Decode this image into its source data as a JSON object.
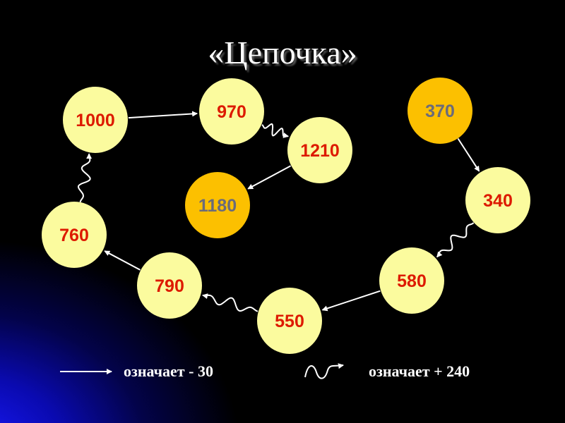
{
  "title": "«Цепочка»",
  "colors": {
    "node_fill": "#fbfb9e",
    "node_highlight": "#fcc000",
    "text_red": "#dd1a00",
    "text_gray": "#6b6b7a",
    "arrow": "#ffffff"
  },
  "nodes": [
    {
      "id": "n1000",
      "label": "1000",
      "highlight": false
    },
    {
      "id": "n970",
      "label": "970",
      "highlight": false
    },
    {
      "id": "n1210",
      "label": "1210",
      "highlight": false
    },
    {
      "id": "n1180",
      "label": "1180",
      "highlight": true
    },
    {
      "id": "n370",
      "label": "370",
      "highlight": true
    },
    {
      "id": "n340",
      "label": "340",
      "highlight": false
    },
    {
      "id": "n580",
      "label": "580",
      "highlight": false
    },
    {
      "id": "n550",
      "label": "550",
      "highlight": false
    },
    {
      "id": "n790",
      "label": "790",
      "highlight": false
    },
    {
      "id": "n760",
      "label": "760",
      "highlight": false
    }
  ],
  "edges": [
    {
      "from": "n370",
      "to": "n340",
      "type": "straight"
    },
    {
      "from": "n340",
      "to": "n580",
      "type": "wavy"
    },
    {
      "from": "n580",
      "to": "n550",
      "type": "straight"
    },
    {
      "from": "n550",
      "to": "n790",
      "type": "wavy"
    },
    {
      "from": "n790",
      "to": "n760",
      "type": "straight"
    },
    {
      "from": "n760",
      "to": "n1000",
      "type": "wavy"
    },
    {
      "from": "n1000",
      "to": "n970",
      "type": "straight"
    },
    {
      "from": "n970",
      "to": "n1210",
      "type": "wavy"
    },
    {
      "from": "n1210",
      "to": "n1180",
      "type": "straight"
    }
  ],
  "legend": {
    "straight_label": "означает - 30",
    "wavy_label": "означает + 240"
  }
}
